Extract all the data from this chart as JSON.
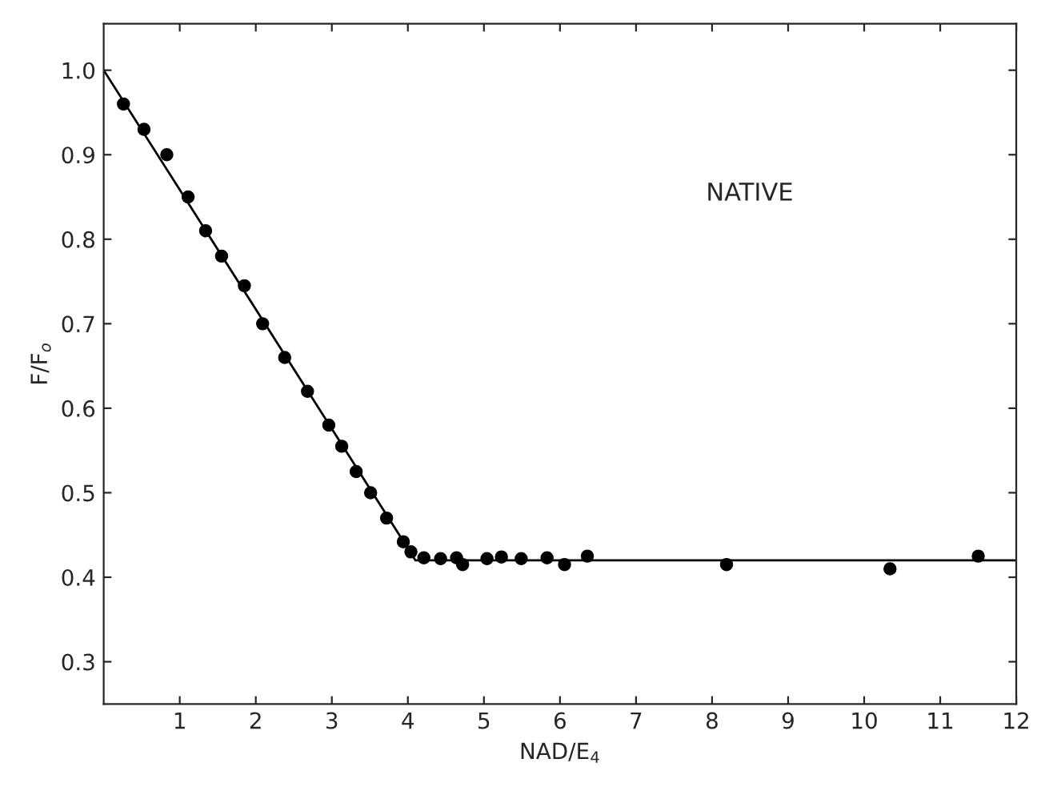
{
  "chart_data": {
    "type": "scatter",
    "xlabel": "NAD/E$_{4}$",
    "ylabel": "F/F$_{o}$",
    "annotations": [
      "NATIVE"
    ],
    "xlim": [
      0,
      12
    ],
    "ylim": [
      0.25,
      1.055
    ],
    "xticks": [
      1,
      2,
      3,
      4,
      5,
      6,
      7,
      8,
      9,
      10,
      11,
      12
    ],
    "yticks": [
      0.3,
      0.4,
      0.5,
      0.6,
      0.7,
      0.8,
      0.9,
      {
        "value": 1.0,
        "label": "1.0"
      }
    ],
    "grid": false,
    "series": [
      {
        "color": "#000000",
        "marker": "circle",
        "x": [
          0.26,
          0.53,
          0.83,
          1.11,
          1.34,
          1.55,
          1.85,
          2.09,
          2.38,
          2.68,
          2.96,
          3.13,
          3.32,
          3.51,
          3.72,
          3.94,
          4.04,
          4.21,
          4.43,
          4.64,
          4.72,
          5.04,
          5.23,
          5.49,
          5.83,
          6.06,
          6.36,
          8.19,
          10.34,
          11.5
        ],
        "values": [
          0.96,
          0.93,
          0.9,
          0.85,
          0.81,
          0.78,
          0.745,
          0.7,
          0.66,
          0.62,
          0.58,
          0.555,
          0.525,
          0.5,
          0.47,
          0.442,
          0.43,
          0.423,
          0.422,
          0.423,
          0.415,
          0.422,
          0.424,
          0.422,
          0.423,
          0.415,
          0.425,
          0.415,
          0.41,
          0.425
        ]
      },
      {
        "type": "line",
        "color": "#000000",
        "marker": "none",
        "x": [
          0,
          4.1,
          12
        ],
        "values": [
          1.0,
          0.42,
          0.42
        ]
      }
    ]
  }
}
